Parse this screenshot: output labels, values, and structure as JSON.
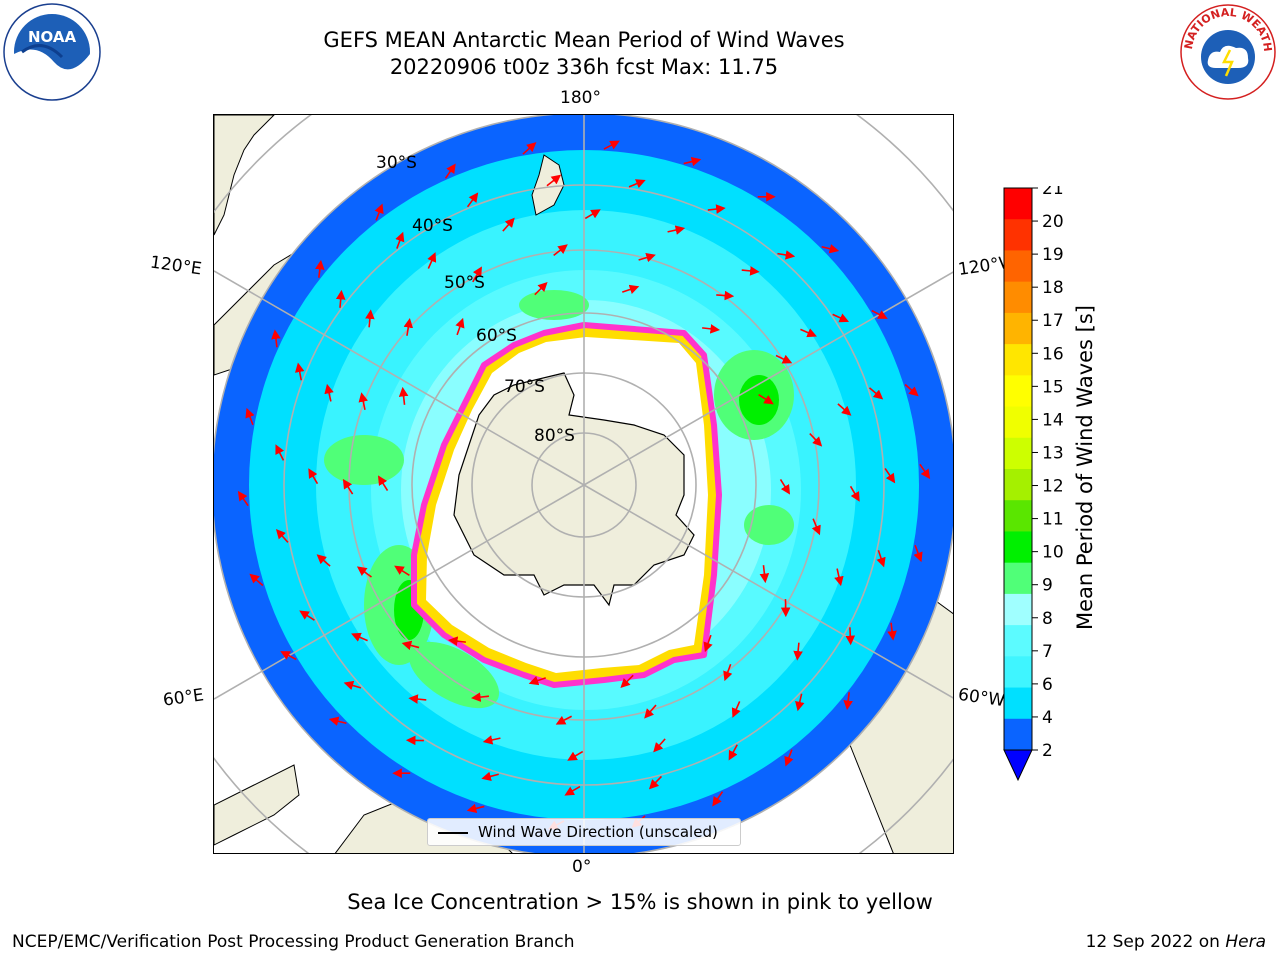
{
  "header": {
    "title_line1": "GEFS MEAN Antarctic Mean Period of Wind Waves",
    "title_line2": "20220906 t00z 336h fcst   Max: 11.75"
  },
  "logos": {
    "left": "NOAA",
    "right": "NATIONAL WEATHER SERVICE"
  },
  "map": {
    "projection": "south-polar-stereographic",
    "colors": {
      "ocean_low": "#00e5ff",
      "ocean_deep": "#0a64ff",
      "land": "#efeedc",
      "ice_free_white": "#ffffff",
      "ice_edge": "#ff33cc",
      "grid": "#b0b0b0",
      "arrow": "#ff0000"
    },
    "latitude_labels": [
      "30°S",
      "40°S",
      "50°S",
      "60°S",
      "70°S",
      "80°S"
    ],
    "longitude_labels": {
      "top": "180°",
      "bottom": "0°",
      "upper_left": "120°E",
      "upper_right": "120°W",
      "lower_left": "60°E",
      "lower_right": "60°W"
    },
    "legend_label": "Wind Wave Direction (unscaled)"
  },
  "colorbar": {
    "label": "Mean Period of Wind Waves [s]",
    "ticks": [
      "2",
      "4",
      "6",
      "7",
      "8",
      "9",
      "10",
      "11",
      "12",
      "13",
      "14",
      "15",
      "16",
      "17",
      "18",
      "19",
      "20",
      "21"
    ],
    "colors": [
      "#0a64ff",
      "#00e0ff",
      "#3ff5ff",
      "#5cfbff",
      "#a0ffff",
      "#50ff78",
      "#00f000",
      "#5ae600",
      "#a5f000",
      "#cdff00",
      "#f0ff00",
      "#ffff00",
      "#ffe600",
      "#ffb400",
      "#ff8c00",
      "#ff6400",
      "#ff3200",
      "#ff0000"
    ],
    "extend_color": "#0000ff"
  },
  "footer": {
    "subtitle": "Sea Ice Concentration > 15% is shown in pink to yellow",
    "left": "NCEP/EMC/Verification Post Processing Product Generation Branch",
    "right_date": "12 Sep 2022 on ",
    "right_machine": "Hera"
  }
}
